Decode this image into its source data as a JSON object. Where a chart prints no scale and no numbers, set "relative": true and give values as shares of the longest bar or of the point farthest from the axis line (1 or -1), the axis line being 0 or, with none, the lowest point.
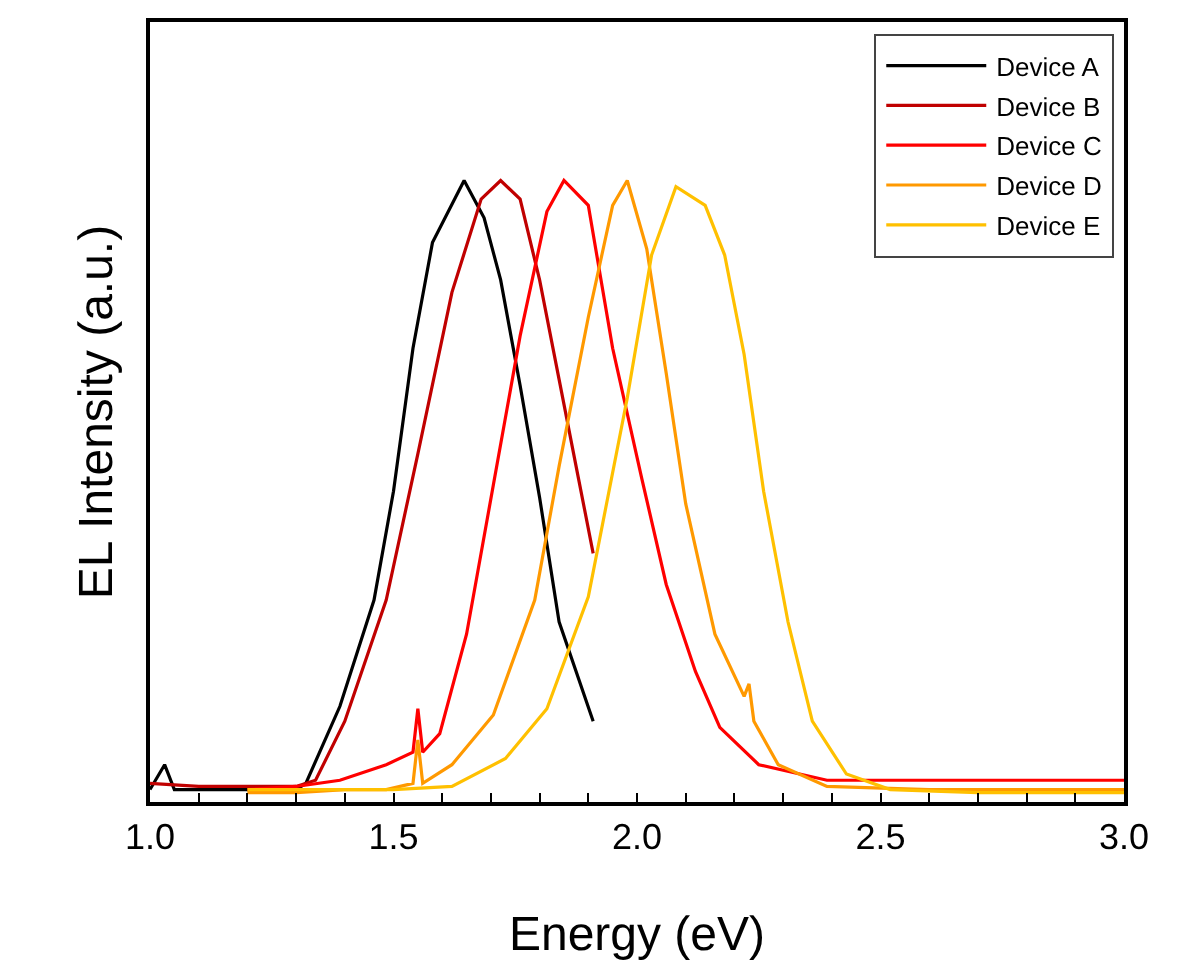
{
  "chart_data": {
    "type": "line",
    "xlabel": "Energy (eV)",
    "ylabel": "EL Intensity (a.u.)",
    "relative": true,
    "xlim": [
      1.0,
      3.0
    ],
    "xticks": [
      {
        "value": 1.0,
        "label": "1.0"
      },
      {
        "value": 1.1,
        "label": null
      },
      {
        "value": 1.2,
        "label": null
      },
      {
        "value": 1.3,
        "label": null
      },
      {
        "value": 1.4,
        "label": null
      },
      {
        "value": 1.5,
        "label": "1.5"
      },
      {
        "value": 1.6,
        "label": null
      },
      {
        "value": 1.7,
        "label": null
      },
      {
        "value": 1.8,
        "label": null
      },
      {
        "value": 1.9,
        "label": null
      },
      {
        "value": 2.0,
        "label": "2.0"
      },
      {
        "value": 2.1,
        "label": null
      },
      {
        "value": 2.2,
        "label": null
      },
      {
        "value": 2.3,
        "label": null
      },
      {
        "value": 2.4,
        "label": null
      },
      {
        "value": 2.5,
        "label": "2.5"
      },
      {
        "value": 2.6,
        "label": null
      },
      {
        "value": 2.7,
        "label": null
      },
      {
        "value": 2.8,
        "label": null
      },
      {
        "value": 2.9,
        "label": null
      },
      {
        "value": 3.0,
        "label": "3.0"
      }
    ],
    "legend": "top right",
    "grid": false,
    "marker": "none",
    "line_style": "solid",
    "series": [
      {
        "name": "Device A",
        "color": "#000000",
        "x": [
          1.0,
          1.03,
          1.05,
          1.1,
          1.2,
          1.3,
          1.32,
          1.39,
          1.46,
          1.5,
          1.54,
          1.58,
          1.645,
          1.686,
          1.72,
          1.76,
          1.8,
          1.84,
          1.91
        ],
        "values": [
          0.02,
          0.06,
          0.02,
          0.02,
          0.02,
          0.02,
          0.03,
          0.154,
          0.325,
          0.5,
          0.73,
          0.9,
          1.0,
          0.94,
          0.84,
          0.67,
          0.49,
          0.29,
          0.13
        ]
      },
      {
        "name": "Device B",
        "color": "#c00000",
        "x": [
          1.0,
          1.1,
          1.2,
          1.3,
          1.34,
          1.4,
          1.485,
          1.55,
          1.62,
          1.68,
          1.72,
          1.76,
          1.8,
          1.84,
          1.88,
          1.91
        ],
        "values": [
          0.03,
          0.025,
          0.025,
          0.025,
          0.035,
          0.13,
          0.325,
          0.56,
          0.82,
          0.97,
          1.0,
          0.97,
          0.84,
          0.68,
          0.52,
          0.4
        ]
      },
      {
        "name": "Device C",
        "color": "#ff0000",
        "x": [
          1.2,
          1.3,
          1.39,
          1.485,
          1.54,
          1.55,
          1.56,
          1.595,
          1.65,
          1.705,
          1.76,
          1.815,
          1.85,
          1.9,
          1.95,
          2.01,
          2.06,
          2.12,
          2.17,
          2.25,
          2.39,
          2.6,
          2.8,
          3.0
        ],
        "values": [
          0.02,
          0.025,
          0.035,
          0.06,
          0.08,
          0.15,
          0.08,
          0.11,
          0.27,
          0.51,
          0.75,
          0.95,
          1.0,
          0.96,
          0.73,
          0.52,
          0.35,
          0.21,
          0.12,
          0.06,
          0.035,
          0.035,
          0.035,
          0.035
        ]
      },
      {
        "name": "Device D",
        "color": "#ff9900",
        "x": [
          1.2,
          1.3,
          1.4,
          1.485,
          1.54,
          1.55,
          1.56,
          1.62,
          1.705,
          1.79,
          1.84,
          1.9,
          1.95,
          1.98,
          2.02,
          2.06,
          2.1,
          2.16,
          2.22,
          2.23,
          2.24,
          2.29,
          2.39,
          2.6,
          2.8,
          3.0
        ],
        "values": [
          0.015,
          0.015,
          0.02,
          0.02,
          0.03,
          0.1,
          0.03,
          0.06,
          0.14,
          0.325,
          0.54,
          0.78,
          0.96,
          1.0,
          0.89,
          0.69,
          0.48,
          0.27,
          0.17,
          0.19,
          0.13,
          0.06,
          0.025,
          0.02,
          0.02,
          0.02
        ],
        "type": "line"
      },
      {
        "name": "Device E",
        "color": "#ffc000",
        "x": [
          1.2,
          1.3,
          1.4,
          1.5,
          1.62,
          1.73,
          1.815,
          1.9,
          1.98,
          2.03,
          2.08,
          2.14,
          2.18,
          2.22,
          2.26,
          2.31,
          2.36,
          2.43,
          2.52,
          2.7,
          2.85,
          3.0
        ],
        "values": [
          0.02,
          0.02,
          0.02,
          0.02,
          0.025,
          0.07,
          0.15,
          0.33,
          0.65,
          0.88,
          0.99,
          0.96,
          0.88,
          0.72,
          0.5,
          0.29,
          0.13,
          0.045,
          0.02,
          0.015,
          0.015,
          0.015
        ]
      }
    ]
  }
}
